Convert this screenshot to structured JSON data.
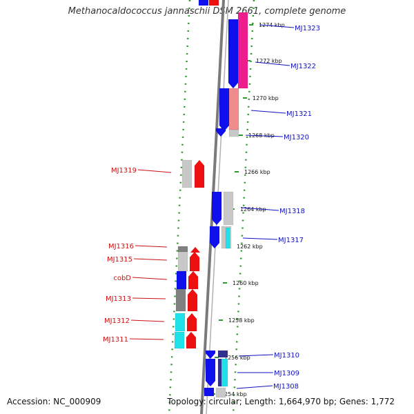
{
  "title": "Methanocaldococcus jannaschii DSM 2661, complete genome",
  "footer": {
    "accession": "Accession: NC_000909",
    "summary": "Topology: circular; Length: 1,664,970 bp; Genes: 1,772"
  },
  "colors": {
    "blue": "#1010ee",
    "red": "#ee1010",
    "gray": "#c8c8c8",
    "dark_gray": "#808080",
    "magenta": "#ee1c8c",
    "salmon": "#f08c8c",
    "cyan": "#20e0e8",
    "navy": "#303090",
    "guide_green": "#2a9a2a",
    "label_blue": "#1010c0",
    "label_red": "#cc1010"
  },
  "ticks": [
    "1274 kbp",
    "1272 kbp",
    "1270 kbp",
    "1268 kbp",
    "1266 kbp",
    "1264 kbp",
    "1262 kbp",
    "1260 kbp",
    "1258 kbp",
    "1256 kbp",
    "1254 kbp"
  ],
  "right_labels": [
    "MJ1323",
    "MJ1322",
    "MJ1321",
    "MJ1320",
    "MJ1318",
    "MJ1317",
    "MJ1310",
    "MJ1309",
    "MJ1308"
  ],
  "left_labels": [
    "MJ1319",
    "MJ1316",
    "MJ1315",
    "cobD",
    "MJ1313",
    "MJ1312",
    "MJ1311"
  ]
}
